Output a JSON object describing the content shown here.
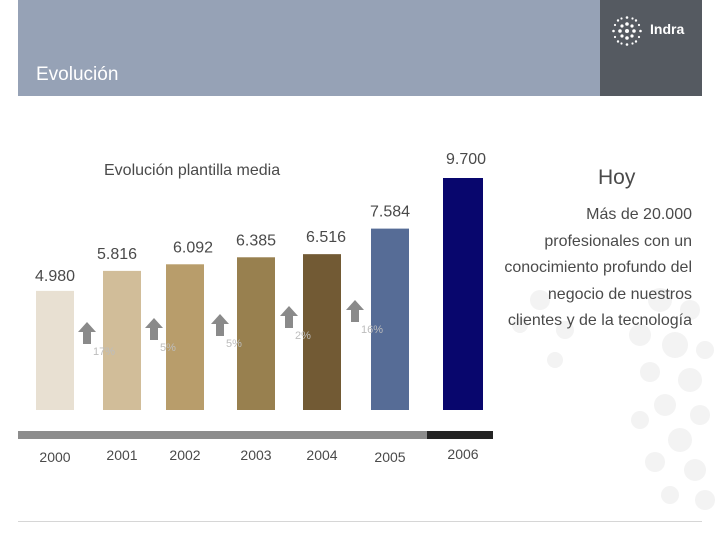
{
  "header": {
    "title": "Evolución",
    "logo_text": "Indra",
    "band_color": "#96a2b6",
    "logo_bg": "#555a61"
  },
  "chart_data": {
    "type": "bar",
    "title": "Evolución plantilla media",
    "categories": [
      "2000",
      "2001",
      "2002",
      "2003",
      "2004",
      "2005",
      "2006"
    ],
    "values": [
      4980,
      5816,
      6092,
      6385,
      6516,
      7584,
      9700
    ],
    "value_labels": [
      "4.980",
      "5.816",
      "6.092",
      "6.385",
      "6.516",
      "7.584",
      "9.700"
    ],
    "colors": [
      "#e8e0d2",
      "#d1bd99",
      "#b89d6b",
      "#98804f",
      "#725a34",
      "#566c96",
      "#08066d"
    ],
    "growth": [
      {
        "label": "17%",
        "between": [
          "2000",
          "2001"
        ]
      },
      {
        "label": "5%",
        "between": [
          "2001",
          "2002"
        ]
      },
      {
        "label": "5%",
        "between": [
          "2002",
          "2003"
        ]
      },
      {
        "label": "2%",
        "between": [
          "2003",
          "2004"
        ]
      },
      {
        "label": "16%",
        "between": [
          "2004",
          "2005"
        ]
      }
    ],
    "xlabel": "",
    "ylabel": "",
    "grid": false,
    "legend": "none"
  },
  "today": {
    "title": "Hoy",
    "text": "Más de 20.000 profesionales con un conocimiento profundo del negocio de nuestros clientes y de la tecnología"
  }
}
